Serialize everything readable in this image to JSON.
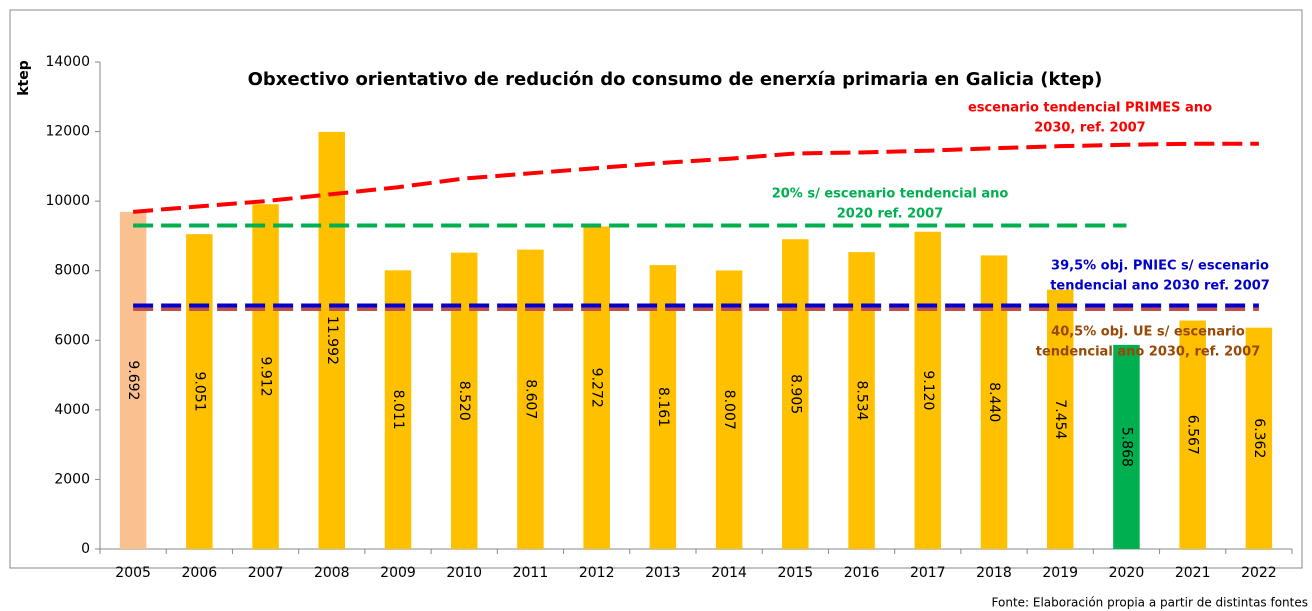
{
  "chart_data": {
    "type": "bar",
    "title": "Obxectivo orientativo de redución do consumo de enerxía primaria en Galicia (ktep)",
    "y_label": "ktep",
    "source": "Fonte: Elaboración propia a partir de distintas fontes",
    "categories": [
      "2005",
      "2006",
      "2007",
      "2008",
      "2009",
      "2010",
      "2011",
      "2012",
      "2013",
      "2014",
      "2015",
      "2016",
      "2017",
      "2018",
      "2019",
      "2020",
      "2021",
      "2022"
    ],
    "values": [
      9692,
      9051,
      9912,
      11992,
      8011,
      8520,
      8607,
      9272,
      8161,
      8007,
      8905,
      8534,
      9120,
      8440,
      7454,
      5868,
      6567,
      6362
    ],
    "value_labels": [
      "9.692",
      "9.051",
      "9.912",
      "11.992",
      "8.011",
      "8.520",
      "8.607",
      "9.272",
      "8.161",
      "8.007",
      "8.905",
      "8.534",
      "9.120",
      "8.440",
      "7.454",
      "5.868",
      "6.567",
      "6.362"
    ],
    "colors": [
      "#fac090",
      "#ffc000",
      "#ffc000",
      "#ffc000",
      "#ffc000",
      "#ffc000",
      "#ffc000",
      "#ffc000",
      "#ffc000",
      "#ffc000",
      "#ffc000",
      "#ffc000",
      "#ffc000",
      "#ffc000",
      "#ffc000",
      "#00b050",
      "#ffc000",
      "#ffc000"
    ],
    "ylim": [
      0,
      14000
    ],
    "yticks": [
      0,
      2000,
      4000,
      6000,
      8000,
      10000,
      12000,
      14000
    ],
    "grid": false,
    "lines": [
      {
        "color": "#ff0000",
        "values": [
          9692,
          9850,
          10000,
          10200,
          10400,
          10650,
          10800,
          10950,
          11100,
          11220,
          11370,
          11400,
          11450,
          11520,
          11580,
          11620,
          11650,
          11650
        ]
      },
      {
        "color": "#00b050",
        "values": [
          9300,
          9300,
          9300,
          9300,
          9300,
          9300,
          9300,
          9300,
          9300,
          9300,
          9300,
          9300,
          9300,
          9300,
          9300,
          9300,
          null,
          null
        ]
      },
      {
        "color": "#c0504d",
        "values": [
          6900,
          6900,
          6900,
          6900,
          6900,
          6900,
          6900,
          6900,
          6900,
          6900,
          6900,
          6900,
          6900,
          6900,
          6900,
          6900,
          6900,
          6900
        ]
      },
      {
        "color": "#0000cc",
        "values": [
          7000,
          7000,
          7000,
          7000,
          7000,
          7000,
          7000,
          7000,
          7000,
          7000,
          7000,
          7000,
          7000,
          7000,
          7000,
          7000,
          7000,
          7000
        ]
      }
    ],
    "annotations": [
      {
        "color": "#ff0000",
        "lines": [
          "escenario tendencial PRIMES ano",
          "2030, ref. 2007"
        ]
      },
      {
        "color": "#00b050",
        "lines": [
          "20% s/ escenario tendencial ano",
          "2020 ref. 2007"
        ]
      },
      {
        "color": "#0000cc",
        "lines": [
          "39,5% obj. PNIEC s/ escenario",
          "tendencial ano 2030 ref. 2007"
        ]
      },
      {
        "color": "#984806",
        "lines": [
          "40,5% obj. UE s/ escenario",
          "tendencial ano 2030, ref. 2007"
        ]
      }
    ]
  }
}
